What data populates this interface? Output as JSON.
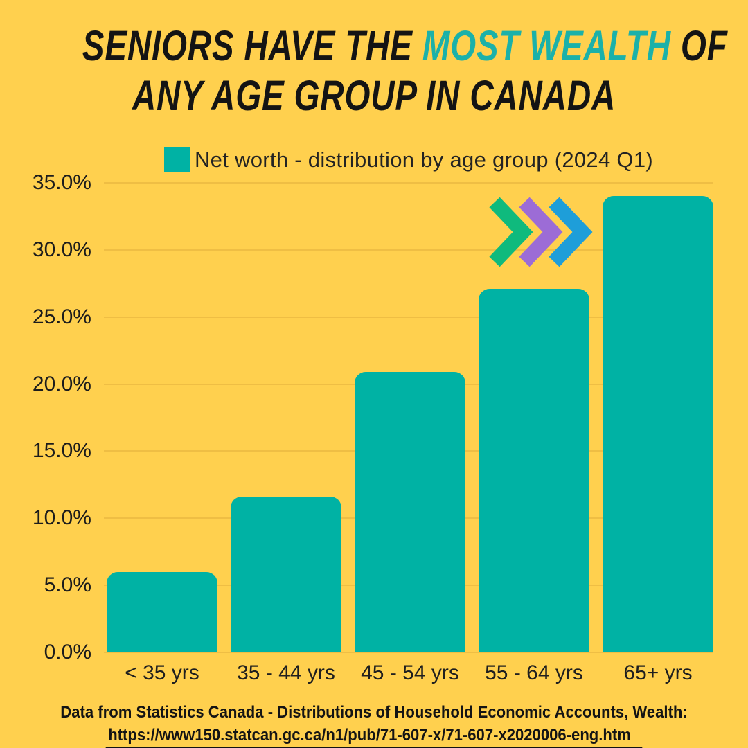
{
  "page": {
    "background_color": "#ffd04e",
    "text_color": "#141414"
  },
  "title": {
    "line1_prefix": "SENIORS HAVE THE ",
    "line1_highlight": "MOST WEALTH",
    "line1_suffix": " OF",
    "line2": "ANY AGE GROUP IN CANADA",
    "highlight_color": "#1bb1a9"
  },
  "legend": {
    "swatch_color": "#00b2a4",
    "label": "Net worth - distribution by age group (2024 Q1)"
  },
  "chart_data": {
    "type": "bar",
    "title": "Seniors have the most wealth of any age group in Canada",
    "subtitle": "Net worth - distribution by age group (2024 Q1)",
    "categories": [
      "< 35 yrs",
      "35 - 44 yrs",
      "45 - 54 yrs",
      "55 - 64 yrs",
      "65+ yrs"
    ],
    "values": [
      6.0,
      11.6,
      20.9,
      27.1,
      34.0
    ],
    "unit": "%",
    "xlabel": "",
    "ylabel": "",
    "ylim": [
      0,
      35
    ],
    "ytick_step": 5,
    "ytick_labels": [
      "0.0%",
      "5.0%",
      "10.0%",
      "15.0%",
      "20.0%",
      "25.0%",
      "30.0%",
      "35.0%"
    ],
    "grid": true,
    "legend_position": "top-center",
    "bar_color": "#00b2a4"
  },
  "decoration": {
    "name": "triple-chevron-right",
    "chevron_colors": {
      "green": "#0fba7d",
      "purple": "#9c6cd6",
      "blue": "#1e9ed9"
    }
  },
  "footer": {
    "line1": "Data from Statistics Canada - Distributions of Household Economic Accounts, Wealth:",
    "link": "https://www150.statcan.gc.ca/n1/pub/71-607-x/71-607-x2020006-eng.htm"
  }
}
